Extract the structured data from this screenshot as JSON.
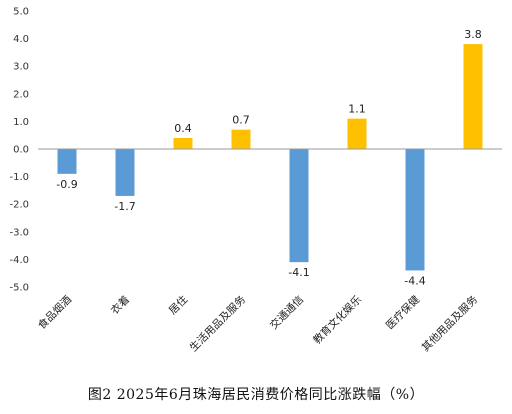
{
  "caption": "图2 2025年6月珠海居民消费价格同比涨跌幅（%）",
  "colors": {
    "negative": "#5B9BD5",
    "positive": "#FFC000",
    "axis": "#999999"
  },
  "chart_data": {
    "type": "bar",
    "title": "",
    "xlabel": "",
    "ylabel": "",
    "ylim": [
      -5.0,
      5.0
    ],
    "yticks": [
      "5.0",
      "4.0",
      "3.0",
      "2.0",
      "1.0",
      "0.0",
      "-1.0",
      "-2.0",
      "-3.0",
      "-4.0",
      "-5.0"
    ],
    "ytick_values": [
      5,
      4,
      3,
      2,
      1,
      0,
      -1,
      -2,
      -3,
      -4,
      -5
    ],
    "categories": [
      "食品烟酒",
      "衣着",
      "居住",
      "生活用品及服务",
      "交通通信",
      "教育文化娱乐",
      "医疗保健",
      "其他用品及服务"
    ],
    "values": [
      -0.9,
      -1.7,
      0.4,
      0.7,
      -4.1,
      1.1,
      -4.4,
      3.8
    ],
    "value_labels": [
      "-0.9",
      "-1.7",
      "0.4",
      "0.7",
      "-4.1",
      "1.1",
      "-4.4",
      "3.8"
    ],
    "grid": false,
    "legend": "none"
  }
}
